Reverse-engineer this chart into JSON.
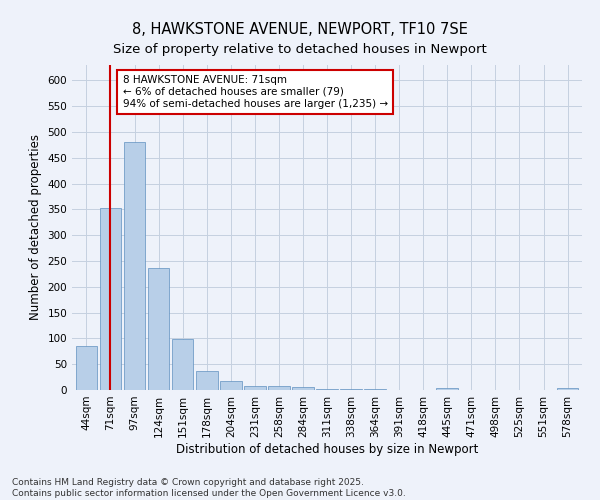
{
  "title": "8, HAWKSTONE AVENUE, NEWPORT, TF10 7SE",
  "subtitle": "Size of property relative to detached houses in Newport",
  "xlabel": "Distribution of detached houses by size in Newport",
  "ylabel": "Number of detached properties",
  "categories": [
    "44sqm",
    "71sqm",
    "97sqm",
    "124sqm",
    "151sqm",
    "178sqm",
    "204sqm",
    "231sqm",
    "258sqm",
    "284sqm",
    "311sqm",
    "338sqm",
    "364sqm",
    "391sqm",
    "418sqm",
    "445sqm",
    "471sqm",
    "498sqm",
    "525sqm",
    "551sqm",
    "578sqm"
  ],
  "values": [
    85,
    352,
    480,
    236,
    98,
    37,
    18,
    7,
    7,
    6,
    2,
    1,
    1,
    0,
    0,
    4,
    0,
    0,
    0,
    0,
    4
  ],
  "bar_color": "#b8cfe8",
  "bar_edge_color": "#6090c0",
  "highlight_index": 1,
  "highlight_line_color": "#cc0000",
  "annotation_text": "8 HAWKSTONE AVENUE: 71sqm\n← 6% of detached houses are smaller (79)\n94% of semi-detached houses are larger (1,235) →",
  "annotation_box_color": "#ffffff",
  "annotation_box_edge_color": "#cc0000",
  "ylim": [
    0,
    630
  ],
  "yticks": [
    0,
    50,
    100,
    150,
    200,
    250,
    300,
    350,
    400,
    450,
    500,
    550,
    600
  ],
  "footer_text": "Contains HM Land Registry data © Crown copyright and database right 2025.\nContains public sector information licensed under the Open Government Licence v3.0.",
  "bg_color": "#eef2fa",
  "grid_color": "#c5d0e0",
  "title_fontsize": 10.5,
  "subtitle_fontsize": 9.5,
  "axis_label_fontsize": 8.5,
  "tick_fontsize": 7.5,
  "annotation_fontsize": 7.5,
  "footer_fontsize": 6.5
}
